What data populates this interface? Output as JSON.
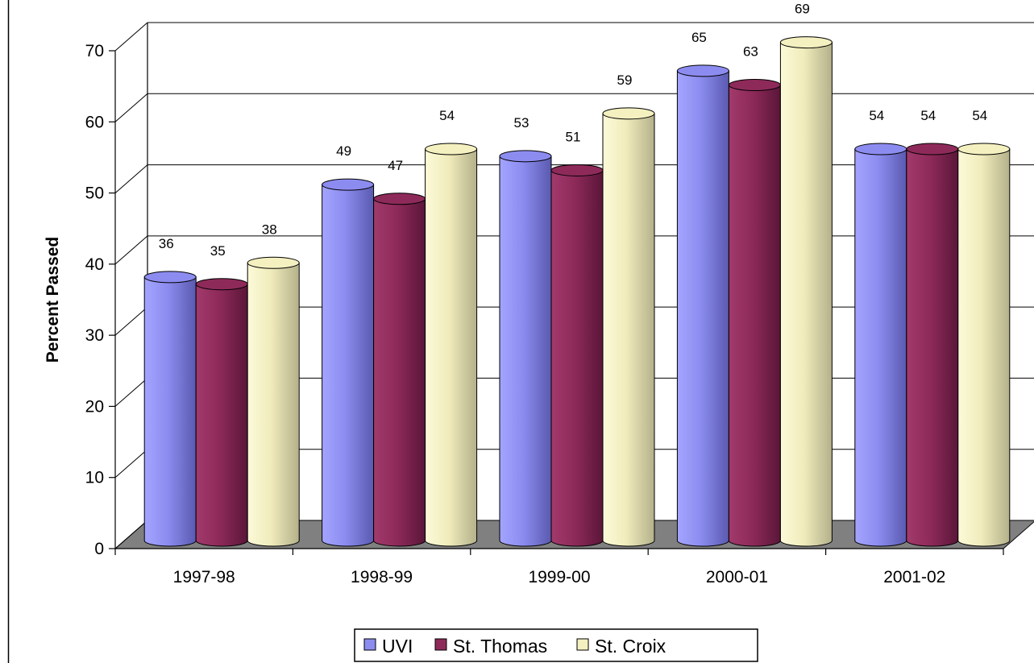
{
  "chart_data": {
    "type": "bar",
    "title": "",
    "xlabel": "",
    "ylabel": "Percent Passed",
    "ylim": [
      0,
      70
    ],
    "yticks": [
      0,
      10,
      20,
      30,
      40,
      50,
      60,
      70
    ],
    "categories": [
      "1997-98",
      "1998-99",
      "1999-00",
      "2000-01",
      "2001-02"
    ],
    "series": [
      {
        "name": "UVI",
        "values": [
          36,
          49,
          53,
          65,
          54
        ],
        "color": "#8c8cf0"
      },
      {
        "name": "St. Thomas",
        "values": [
          35,
          47,
          51,
          63,
          54
        ],
        "color": "#8e2a5a"
      },
      {
        "name": "St. Croix",
        "values": [
          38,
          54,
          59,
          69,
          54
        ],
        "color": "#f4f0c0"
      }
    ],
    "grid": true,
    "legend": "bottom-center",
    "style": "3d-cylinder"
  }
}
